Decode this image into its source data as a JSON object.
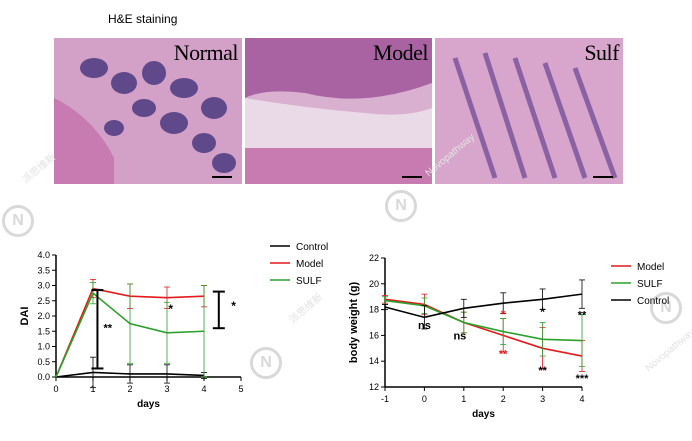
{
  "figure_title": "H&E staining",
  "panels": [
    {
      "label": "Normal"
    },
    {
      "label": "Model"
    },
    {
      "label": "Sulf"
    }
  ],
  "watermark": {
    "chinese": "派思维新",
    "latin": "Novopathway",
    "logo": "N"
  },
  "colors": {
    "Control": "#000000",
    "Model": "#e41a1c",
    "SULF": "#2ca02c",
    "HE_bg": "#c77bb0",
    "HE_cells": "#5b3d8a"
  },
  "chart_data": [
    {
      "type": "line",
      "xlabel": "days",
      "ylabel": "DAI",
      "xlim": [
        0,
        5
      ],
      "ylim": [
        0,
        4
      ],
      "xticks": [
        "0",
        "1",
        "2",
        "3",
        "4",
        "5"
      ],
      "yticks": [
        "0.0",
        "0.5",
        "1.0",
        "1.5",
        "2.0",
        "2.5",
        "3.0",
        "3.5",
        "4.0"
      ],
      "legend_position": "top-right-outside",
      "series": [
        {
          "name": "Control",
          "x": [
            0,
            1,
            2,
            3,
            4
          ],
          "y": [
            0,
            0.15,
            0.1,
            0.1,
            0.05
          ],
          "err": [
            0,
            0.5,
            0.3,
            0.3,
            0.1
          ]
        },
        {
          "name": "Model",
          "x": [
            0,
            1,
            2,
            3,
            4
          ],
          "y": [
            0,
            2.9,
            2.65,
            2.6,
            2.65
          ],
          "err": [
            0,
            0.3,
            0.4,
            0.35,
            0.35
          ]
        },
        {
          "name": "SULF",
          "x": [
            0,
            1,
            2,
            3,
            4
          ],
          "y": [
            0,
            2.75,
            1.75,
            1.45,
            1.5
          ],
          "err": [
            0,
            0.35,
            1.3,
            1.0,
            1.5
          ]
        }
      ],
      "annotations": [
        {
          "text": "**",
          "x": 1.4,
          "y": 1.5
        },
        {
          "text": "*",
          "x": 3.1,
          "y": 2.1
        },
        {
          "text": "*",
          "x": 4.8,
          "y": 2.2
        }
      ]
    },
    {
      "type": "line",
      "xlabel": "days",
      "ylabel": "body weight (g)",
      "xlim": [
        -1,
        4
      ],
      "ylim": [
        12,
        22
      ],
      "xticks": [
        "-1",
        "0",
        "1",
        "2",
        "3",
        "4"
      ],
      "yticks": [
        "12",
        "14",
        "16",
        "18",
        "20",
        "22"
      ],
      "legend_position": "top-right-outside",
      "series": [
        {
          "name": "Model",
          "x": [
            -1,
            0,
            1,
            2,
            3,
            4
          ],
          "y": [
            18.8,
            18.4,
            17.0,
            16.0,
            15.0,
            14.4
          ],
          "err": [
            0.3,
            0.8,
            0.8,
            1.3,
            1.6,
            1.2
          ]
        },
        {
          "name": "SULF",
          "x": [
            -1,
            0,
            1,
            2,
            3,
            4
          ],
          "y": [
            18.7,
            18.3,
            17.0,
            16.3,
            15.7,
            15.6
          ],
          "err": [
            0.3,
            0.6,
            0.8,
            1.0,
            1.3,
            2.0
          ]
        },
        {
          "name": "Control",
          "x": [
            -1,
            0,
            1,
            2,
            3,
            4
          ],
          "y": [
            18.2,
            17.4,
            18.1,
            18.5,
            18.8,
            19.2
          ],
          "err": [
            0.2,
            0.9,
            0.7,
            0.8,
            0.8,
            1.1
          ]
        }
      ],
      "annotations": [
        {
          "text": "ns",
          "x": 0,
          "y": 16.5,
          "color": "#000000"
        },
        {
          "text": "ns",
          "x": 0.9,
          "y": 15.7,
          "color": "#000000"
        },
        {
          "text": "*",
          "x": 2,
          "y": 17.3,
          "color": "#e41a1c"
        },
        {
          "text": "**",
          "x": 2,
          "y": 14.3,
          "color": "#e41a1c"
        },
        {
          "text": "*",
          "x": 3,
          "y": 17.5,
          "color": "#000000"
        },
        {
          "text": "**",
          "x": 3,
          "y": 13.0,
          "color": "#000000"
        },
        {
          "text": "**",
          "x": 4,
          "y": 17.3,
          "color": "#000000"
        },
        {
          "text": "***",
          "x": 4,
          "y": 12.4,
          "color": "#000000"
        }
      ]
    }
  ]
}
